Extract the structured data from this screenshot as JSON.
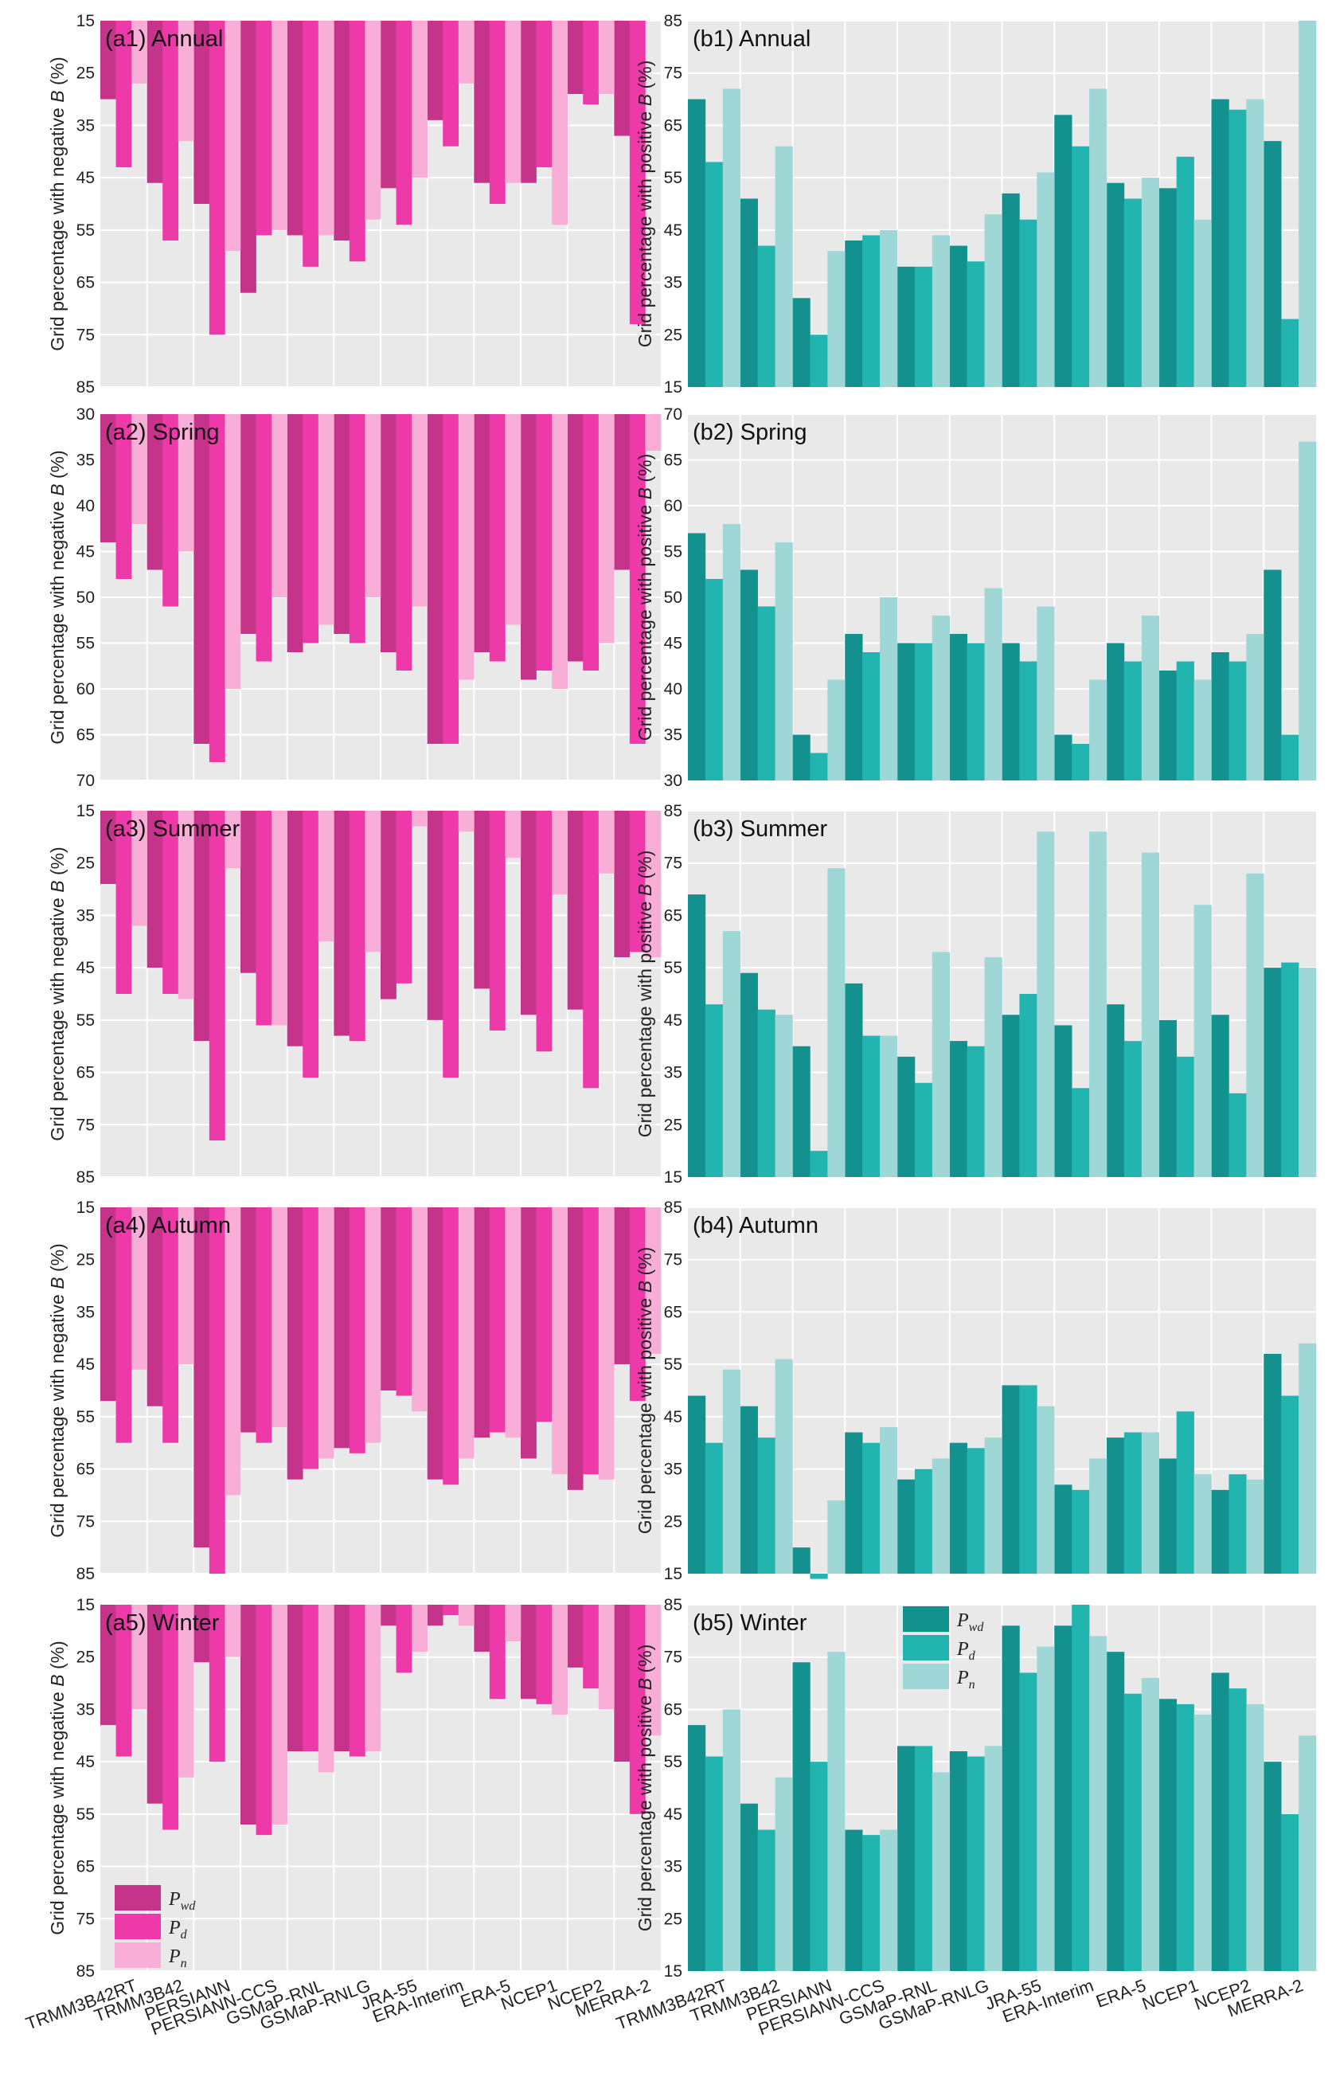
{
  "colors": {
    "a": [
      "#c6338b",
      "#ee3aa9",
      "#f8aed6"
    ],
    "b": [
      "#13918e",
      "#22b5b0",
      "#9fd6d6"
    ],
    "panel_bg": "#e9e9e9",
    "grid": "#ffffff",
    "separator": "#ffffff"
  },
  "categories": [
    "TRMM3B42RT",
    "TRMM3B42",
    "PERSIANN",
    "PERSIANN-CCS",
    "GSMaP-RNL",
    "GSMaP-RNLG",
    "JRA-55",
    "ERA-Interim",
    "ERA-5",
    "NCEP1",
    "NCEP2",
    "MERRA-2"
  ],
  "legend": [
    {
      "base": "P",
      "sub": "wd"
    },
    {
      "base": "P",
      "sub": "d"
    },
    {
      "base": "P",
      "sub": "n"
    }
  ],
  "chart_data": [
    {
      "id": "a1",
      "type": "bar",
      "title": "(a1) Annual",
      "ylabel_prefix": "Grid percentage with negative ",
      "ylabel_var": "B",
      "ylabel_suffix": " (%)",
      "ylim": [
        15,
        85
      ],
      "yticks": [
        15,
        25,
        35,
        45,
        55,
        65,
        75,
        85
      ],
      "inverted": true,
      "grid": true,
      "legend": "none",
      "series": [
        {
          "name": "Pwd",
          "values": [
            30,
            46,
            50,
            67,
            56,
            57,
            47,
            34,
            46,
            46,
            29,
            37
          ]
        },
        {
          "name": "Pd",
          "values": [
            43,
            57,
            75,
            56,
            62,
            61,
            54,
            39,
            50,
            43,
            31,
            73
          ]
        },
        {
          "name": "Pn",
          "values": [
            27,
            38,
            59,
            55,
            56,
            53,
            45,
            27,
            46,
            54,
            29,
            15
          ]
        }
      ]
    },
    {
      "id": "b1",
      "type": "bar",
      "title": "(b1) Annual",
      "ylabel_prefix": "Grid percentage with positive ",
      "ylabel_var": "B",
      "ylabel_suffix": " (%)",
      "ylim": [
        15,
        85
      ],
      "yticks": [
        15,
        25,
        35,
        45,
        55,
        65,
        75,
        85
      ],
      "inverted": false,
      "grid": true,
      "legend": "none",
      "series": [
        {
          "name": "Pwd",
          "values": [
            70,
            51,
            32,
            43,
            38,
            42,
            52,
            67,
            54,
            53,
            70,
            62
          ]
        },
        {
          "name": "Pd",
          "values": [
            58,
            42,
            25,
            44,
            38,
            39,
            47,
            61,
            51,
            59,
            68,
            28
          ]
        },
        {
          "name": "Pn",
          "values": [
            72,
            61,
            41,
            45,
            44,
            48,
            56,
            72,
            55,
            47,
            70,
            85
          ]
        }
      ]
    },
    {
      "id": "a2",
      "type": "bar",
      "title": "(a2) Spring",
      "ylabel_prefix": "Grid percentage with negative ",
      "ylabel_var": "B",
      "ylabel_suffix": " (%)",
      "ylim": [
        30,
        70
      ],
      "yticks": [
        30,
        35,
        40,
        45,
        50,
        55,
        60,
        65,
        70
      ],
      "inverted": true,
      "grid": true,
      "legend": "none",
      "series": [
        {
          "name": "Pwd",
          "values": [
            44,
            47,
            66,
            54,
            56,
            54,
            56,
            66,
            56,
            59,
            57,
            47
          ]
        },
        {
          "name": "Pd",
          "values": [
            48,
            51,
            68,
            57,
            55,
            55,
            58,
            66,
            57,
            58,
            58,
            66
          ]
        },
        {
          "name": "Pn",
          "values": [
            42,
            45,
            60,
            50,
            53,
            50,
            51,
            59,
            53,
            60,
            55,
            34
          ]
        }
      ]
    },
    {
      "id": "b2",
      "type": "bar",
      "title": "(b2) Spring",
      "ylabel_prefix": "Grid percentage with positive ",
      "ylabel_var": "B",
      "ylabel_suffix": " (%)",
      "ylim": [
        30,
        70
      ],
      "yticks": [
        30,
        35,
        40,
        45,
        50,
        55,
        60,
        65,
        70
      ],
      "inverted": false,
      "grid": true,
      "legend": "none",
      "series": [
        {
          "name": "Pwd",
          "values": [
            57,
            53,
            35,
            46,
            45,
            46,
            45,
            35,
            45,
            42,
            44,
            53
          ]
        },
        {
          "name": "Pd",
          "values": [
            52,
            49,
            33,
            44,
            45,
            45,
            43,
            34,
            43,
            43,
            43,
            35
          ]
        },
        {
          "name": "Pn",
          "values": [
            58,
            56,
            41,
            50,
            48,
            51,
            49,
            41,
            48,
            41,
            46,
            67
          ]
        }
      ]
    },
    {
      "id": "a3",
      "type": "bar",
      "title": "(a3) Summer",
      "ylabel_prefix": "Grid percentage with negative ",
      "ylabel_var": "B",
      "ylabel_suffix": " (%)",
      "ylim": [
        15,
        85
      ],
      "yticks": [
        15,
        25,
        35,
        45,
        55,
        65,
        75,
        85
      ],
      "inverted": true,
      "grid": true,
      "legend": "none",
      "series": [
        {
          "name": "Pwd",
          "values": [
            29,
            45,
            59,
            46,
            60,
            58,
            51,
            55,
            49,
            54,
            53,
            43
          ]
        },
        {
          "name": "Pd",
          "values": [
            50,
            50,
            78,
            56,
            66,
            59,
            48,
            66,
            57,
            61,
            68,
            42
          ]
        },
        {
          "name": "Pn",
          "values": [
            37,
            51,
            26,
            56,
            40,
            42,
            18,
            19,
            24,
            31,
            27,
            43
          ]
        }
      ]
    },
    {
      "id": "b3",
      "type": "bar",
      "title": "(b3) Summer",
      "ylabel_prefix": "Grid percentage with positive ",
      "ylabel_var": "B",
      "ylabel_suffix": " (%)",
      "ylim": [
        15,
        85
      ],
      "yticks": [
        15,
        25,
        35,
        45,
        55,
        65,
        75,
        85
      ],
      "inverted": false,
      "grid": true,
      "legend": "none",
      "series": [
        {
          "name": "Pwd",
          "values": [
            69,
            54,
            40,
            52,
            38,
            41,
            46,
            44,
            48,
            45,
            46,
            55
          ]
        },
        {
          "name": "Pd",
          "values": [
            48,
            47,
            20,
            42,
            33,
            40,
            50,
            32,
            41,
            38,
            31,
            56
          ]
        },
        {
          "name": "Pn",
          "values": [
            62,
            46,
            74,
            42,
            58,
            57,
            81,
            81,
            77,
            67,
            73,
            55
          ]
        }
      ]
    },
    {
      "id": "a4",
      "type": "bar",
      "title": "(a4) Autumn",
      "ylabel_prefix": "Grid percentage with negative ",
      "ylabel_var": "B",
      "ylabel_suffix": " (%)",
      "ylim": [
        15,
        85
      ],
      "yticks": [
        15,
        25,
        35,
        45,
        55,
        65,
        75,
        85
      ],
      "inverted": true,
      "grid": true,
      "legend": "none",
      "series": [
        {
          "name": "Pwd",
          "values": [
            52,
            53,
            80,
            58,
            67,
            61,
            50,
            67,
            59,
            63,
            69,
            45
          ]
        },
        {
          "name": "Pd",
          "values": [
            60,
            60,
            85,
            60,
            65,
            62,
            51,
            68,
            58,
            56,
            66,
            52
          ]
        },
        {
          "name": "Pn",
          "values": [
            46,
            45,
            70,
            57,
            63,
            60,
            54,
            63,
            59,
            66,
            67,
            43
          ]
        }
      ]
    },
    {
      "id": "b4",
      "type": "bar",
      "title": "(b4) Autumn",
      "ylabel_prefix": "Grid percentage with positive ",
      "ylabel_var": "B",
      "ylabel_suffix": " (%)",
      "ylim": [
        15,
        85
      ],
      "yticks": [
        15,
        25,
        35,
        45,
        55,
        65,
        75,
        85
      ],
      "inverted": false,
      "grid": true,
      "legend": "none",
      "series": [
        {
          "name": "Pwd",
          "values": [
            49,
            47,
            20,
            42,
            33,
            40,
            51,
            32,
            41,
            37,
            31,
            57
          ]
        },
        {
          "name": "Pd",
          "values": [
            40,
            41,
            14,
            40,
            35,
            39,
            51,
            31,
            42,
            46,
            34,
            49
          ]
        },
        {
          "name": "Pn",
          "values": [
            54,
            56,
            29,
            43,
            37,
            41,
            47,
            37,
            42,
            34,
            33,
            59
          ]
        }
      ]
    },
    {
      "id": "a5",
      "type": "bar",
      "title": "(a5) Winter",
      "ylabel_prefix": "Grid percentage with negative ",
      "ylabel_var": "B",
      "ylabel_suffix": " (%)",
      "ylim": [
        15,
        85
      ],
      "yticks": [
        15,
        25,
        35,
        45,
        55,
        65,
        75,
        85
      ],
      "inverted": true,
      "grid": true,
      "legend": "bottom-left",
      "series": [
        {
          "name": "Pwd",
          "values": [
            38,
            53,
            26,
            57,
            43,
            43,
            19,
            19,
            24,
            33,
            27,
            45
          ]
        },
        {
          "name": "Pd",
          "values": [
            44,
            58,
            45,
            59,
            43,
            44,
            28,
            17,
            33,
            34,
            31,
            55
          ]
        },
        {
          "name": "Pn",
          "values": [
            35,
            48,
            25,
            57,
            47,
            43,
            24,
            19,
            22,
            36,
            35,
            40
          ]
        }
      ]
    },
    {
      "id": "b5",
      "type": "bar",
      "title": "(b5) Winter",
      "ylabel_prefix": "Grid percentage with positive ",
      "ylabel_var": "B",
      "ylabel_suffix": " (%)",
      "ylim": [
        15,
        85
      ],
      "yticks": [
        15,
        25,
        35,
        45,
        55,
        65,
        75,
        85
      ],
      "inverted": false,
      "grid": true,
      "legend": "top-left",
      "series": [
        {
          "name": "Pwd",
          "values": [
            62,
            47,
            74,
            42,
            58,
            57,
            81,
            81,
            76,
            67,
            72,
            55
          ]
        },
        {
          "name": "Pd",
          "values": [
            56,
            42,
            55,
            41,
            58,
            56,
            72,
            85,
            68,
            66,
            69,
            45
          ]
        },
        {
          "name": "Pn",
          "values": [
            65,
            52,
            76,
            42,
            53,
            58,
            77,
            79,
            71,
            64,
            66,
            60
          ]
        }
      ]
    }
  ]
}
